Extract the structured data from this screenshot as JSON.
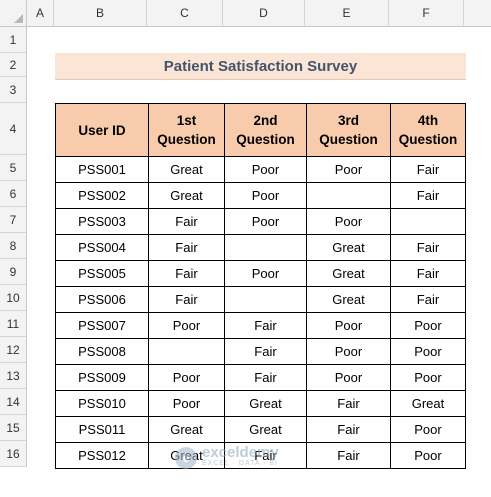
{
  "columns": [
    "A",
    "B",
    "C",
    "D",
    "E",
    "F"
  ],
  "rows": [
    "1",
    "2",
    "3",
    "4",
    "5",
    "6",
    "7",
    "8",
    "9",
    "10",
    "11",
    "12",
    "13",
    "14",
    "15",
    "16"
  ],
  "title": "Patient Satisfaction Survey",
  "table": {
    "headers": [
      [
        "User ID"
      ],
      [
        "1st",
        "Question"
      ],
      [
        "2nd",
        "Question"
      ],
      [
        "3rd",
        "Question"
      ],
      [
        "4th",
        "Question"
      ]
    ],
    "rows": [
      [
        "PSS001",
        "Great",
        "Poor",
        "Poor",
        "Fair"
      ],
      [
        "PSS002",
        "Great",
        "Poor",
        "",
        "Fair"
      ],
      [
        "PSS003",
        "Fair",
        "Poor",
        "Poor",
        ""
      ],
      [
        "PSS004",
        "Fair",
        "",
        "Great",
        "Fair"
      ],
      [
        "PSS005",
        "Fair",
        "Poor",
        "Great",
        "Fair"
      ],
      [
        "PSS006",
        "Fair",
        "",
        "Great",
        "Fair"
      ],
      [
        "PSS007",
        "Poor",
        "Fair",
        "Poor",
        "Poor"
      ],
      [
        "PSS008",
        "",
        "Fair",
        "Poor",
        "Poor"
      ],
      [
        "PSS009",
        "Poor",
        "Fair",
        "Poor",
        "Poor"
      ],
      [
        "PSS010",
        "Poor",
        "Great",
        "Fair",
        "Great"
      ],
      [
        "PSS011",
        "Great",
        "Great",
        "Fair",
        "Poor"
      ],
      [
        "PSS012",
        "Great",
        "Fair",
        "Fair",
        "Poor"
      ]
    ]
  },
  "watermark": {
    "name": "exceldemy",
    "tagline": "EXCEL · DATA · BI"
  },
  "colors": {
    "header_fill": "#f8cbad",
    "title_fill": "#fbe5d6",
    "title_text": "#44546a"
  }
}
